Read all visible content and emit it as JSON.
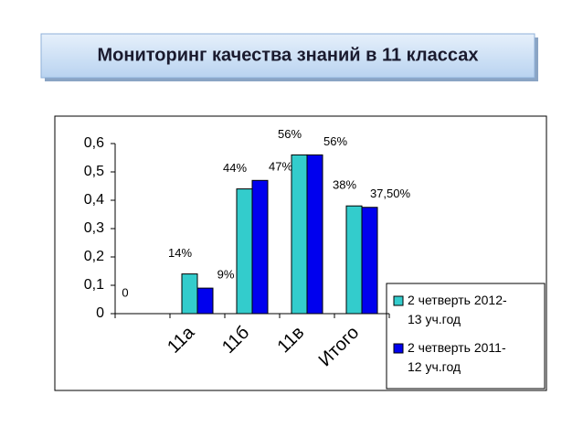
{
  "title": "Мониторинг качества знаний в 11 классах",
  "chart_data": {
    "type": "bar",
    "categories": [
      null,
      "11а",
      "11б",
      "11в",
      "Итого"
    ],
    "series": [
      {
        "name": "2 четверть  2012-13 уч.год",
        "color": "#33cccc",
        "values": [
          0,
          0.14,
          0.44,
          0.56,
          0.38
        ],
        "value_labels": [
          "0",
          "14%",
          "44%",
          "56%",
          "38%"
        ]
      },
      {
        "name": "2 четверть 2011-12 уч.год",
        "color": "#0000ee",
        "values": [
          null,
          0.09,
          0.47,
          0.56,
          0.375
        ],
        "value_labels": [
          null,
          "9%",
          "47%",
          "56%",
          "37,50%"
        ]
      }
    ],
    "ylim": [
      0,
      0.6
    ],
    "yticks": [
      0,
      {
        "value": 0.1,
        "label": "0,1"
      },
      {
        "value": 0.2,
        "label": "0,2"
      },
      {
        "value": 0.3,
        "label": "0,3"
      },
      {
        "value": 0.4,
        "label": "0,4"
      },
      {
        "value": 0.5,
        "label": "0,5"
      },
      {
        "value": 0.6,
        "label": "0,6"
      }
    ],
    "grid": false,
    "legend": "right"
  }
}
